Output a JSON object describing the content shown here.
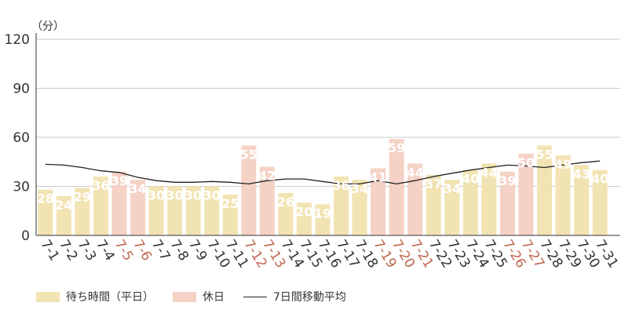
{
  "chart_data": {
    "type": "bar",
    "unit_label": "（分）",
    "ylim": [
      0,
      120
    ],
    "yticks": [
      0,
      30,
      60,
      90,
      120
    ],
    "grid": true,
    "legend_position": "bottom-left",
    "categories": [
      "7-1",
      "7-2",
      "7-3",
      "7-4",
      "7-5",
      "7-6",
      "7-7",
      "7-8",
      "7-9",
      "7-10",
      "7-11",
      "7-12",
      "7-13",
      "7-14",
      "7-15",
      "7-16",
      "7-17",
      "7-18",
      "7-19",
      "7-20",
      "7-21",
      "7-22",
      "7-23",
      "7-24",
      "7-25",
      "7-26",
      "7-27",
      "7-28",
      "7-29",
      "7-30",
      "7-31"
    ],
    "values": [
      28,
      24,
      29,
      36,
      39,
      34,
      30,
      30,
      30,
      30,
      25,
      55,
      42,
      26,
      20,
      19,
      36,
      34,
      41,
      59,
      44,
      37,
      34,
      40,
      44,
      39,
      50,
      55,
      49,
      43,
      40
    ],
    "day_type": [
      "weekday",
      "weekday",
      "weekday",
      "weekday",
      "holiday",
      "holiday",
      "weekday",
      "weekday",
      "weekday",
      "weekday",
      "weekday",
      "holiday",
      "holiday",
      "weekday",
      "weekday",
      "weekday",
      "weekday",
      "weekday",
      "holiday",
      "holiday",
      "holiday",
      "weekday",
      "weekday",
      "weekday",
      "weekday",
      "holiday",
      "holiday",
      "weekday",
      "weekday",
      "weekday",
      "weekday"
    ],
    "series": [
      {
        "name": "待ち時間（平日）",
        "color": "#f2e3b3",
        "label_color": "#ffffff"
      },
      {
        "name": "休日",
        "color": "#f5d2c6",
        "label_color": "#ffffff"
      },
      {
        "name": "7日間移動平均",
        "color": "#222222",
        "type": "line",
        "values": [
          43.5,
          43,
          41.5,
          39.5,
          38.5,
          35.5,
          33.5,
          32.5,
          32.5,
          33,
          32.5,
          31.5,
          33.5,
          34.5,
          34.5,
          33,
          31.5,
          31.5,
          33.5,
          31.5,
          33.5,
          36,
          38,
          40,
          41.5,
          43,
          42.5,
          41.5,
          43,
          44.5,
          45.5
        ]
      }
    ],
    "colors": {
      "weekday_tick": "#333333",
      "holiday_tick": "#c0664d",
      "grid": "#cccccc",
      "axis": "#333333"
    }
  }
}
